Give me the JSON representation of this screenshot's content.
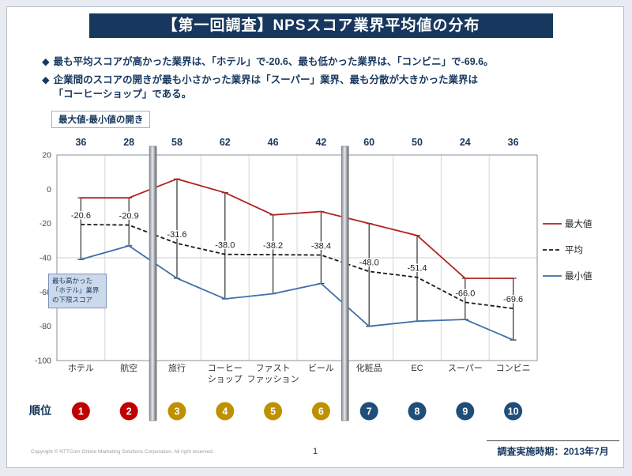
{
  "slide": {
    "title": "【第一回調査】NPSスコア業界平均値の分布",
    "bullet_marker": "◆",
    "bullets": [
      {
        "lines": [
          "最も平均スコアが高かった業界は、「ホテル」で-20.6、最も低かった業界は、「コンビニ」で-69.6。"
        ]
      },
      {
        "lines": [
          "企業間のスコアの開きが最も小さかった業界は「スーパー」業界、最も分散が大きかった業界は",
          "「コーヒーショップ」である。"
        ]
      }
    ],
    "range_label": "最大値-最小値の開き",
    "annotation": "最も高かった「ホテル」業界の下限スコア",
    "rank_label": "順位",
    "page_number": "1",
    "copyright": "Copyright © NTTCom Online Marketing Solutions Corporation. All right reserved.",
    "survey_period": "調査実施時期：2013年7月",
    "colors": {
      "title_bar": "#17375E",
      "accent_text": "#17375E"
    }
  },
  "chart_data": {
    "type": "line",
    "title": "NPSスコア業界平均値の分布",
    "categories": [
      "ホテル",
      "航空",
      "旅行",
      "コーヒーショップ",
      "ファストファッション",
      "ビール",
      "化粧品",
      "EC",
      "スーパー",
      "コンビニ"
    ],
    "category_labels": [
      [
        "ホテル"
      ],
      [
        "航空"
      ],
      [
        "旅行"
      ],
      [
        "コーヒー",
        "ショップ"
      ],
      [
        "ファスト",
        "ファッション"
      ],
      [
        "ビール"
      ],
      [
        "化粧品"
      ],
      [
        "EC"
      ],
      [
        "スーパー"
      ],
      [
        "コンビニ"
      ]
    ],
    "ranges_row_label": "最大値-最小値の開き",
    "ranges": [
      36,
      28,
      58,
      62,
      46,
      42,
      60,
      50,
      24,
      36
    ],
    "series": [
      {
        "name": "最大値",
        "color": "#B22222",
        "style": "solid",
        "values": [
          -5,
          -5,
          6,
          -2,
          -15,
          -13,
          -20,
          -27,
          -52,
          -52
        ]
      },
      {
        "name": "平均",
        "color": "#1a1a1a",
        "style": "dashed",
        "values": [
          -20.6,
          -20.9,
          -31.6,
          -38.0,
          -38.2,
          -38.4,
          -48.0,
          -51.4,
          -66.0,
          -69.6
        ]
      },
      {
        "name": "最小値",
        "color": "#3E6FA9",
        "style": "solid",
        "values": [
          -41,
          -33,
          -52,
          -64,
          -61,
          -55,
          -80,
          -77,
          -76,
          -88
        ]
      }
    ],
    "avg_labels": [
      "-20.6",
      "-20.9",
      "-31.6",
      "-38.0",
      "-38.2",
      "-38.4",
      "-48.0",
      "-51.4",
      "-66.0",
      "-69.6"
    ],
    "ylim": [
      -100,
      20
    ],
    "yticks": [
      20,
      0,
      -20,
      -40,
      -60,
      -80,
      -100
    ],
    "h_gridlines": [
      -40
    ],
    "grid": "on",
    "legend_position": "right",
    "error_bars": true,
    "separators_after": [
      2,
      6
    ],
    "ranks": [
      {
        "label": "1",
        "color": "#C00000"
      },
      {
        "label": "2",
        "color": "#C00000"
      },
      {
        "label": "3",
        "color": "#BF9000"
      },
      {
        "label": "4",
        "color": "#BF9000"
      },
      {
        "label": "5",
        "color": "#BF9000"
      },
      {
        "label": "6",
        "color": "#BF9000"
      },
      {
        "label": "7",
        "color": "#1F4E79"
      },
      {
        "label": "8",
        "color": "#1F4E79"
      },
      {
        "label": "9",
        "color": "#1F4E79"
      },
      {
        "label": "10",
        "color": "#1F4E79"
      }
    ]
  }
}
